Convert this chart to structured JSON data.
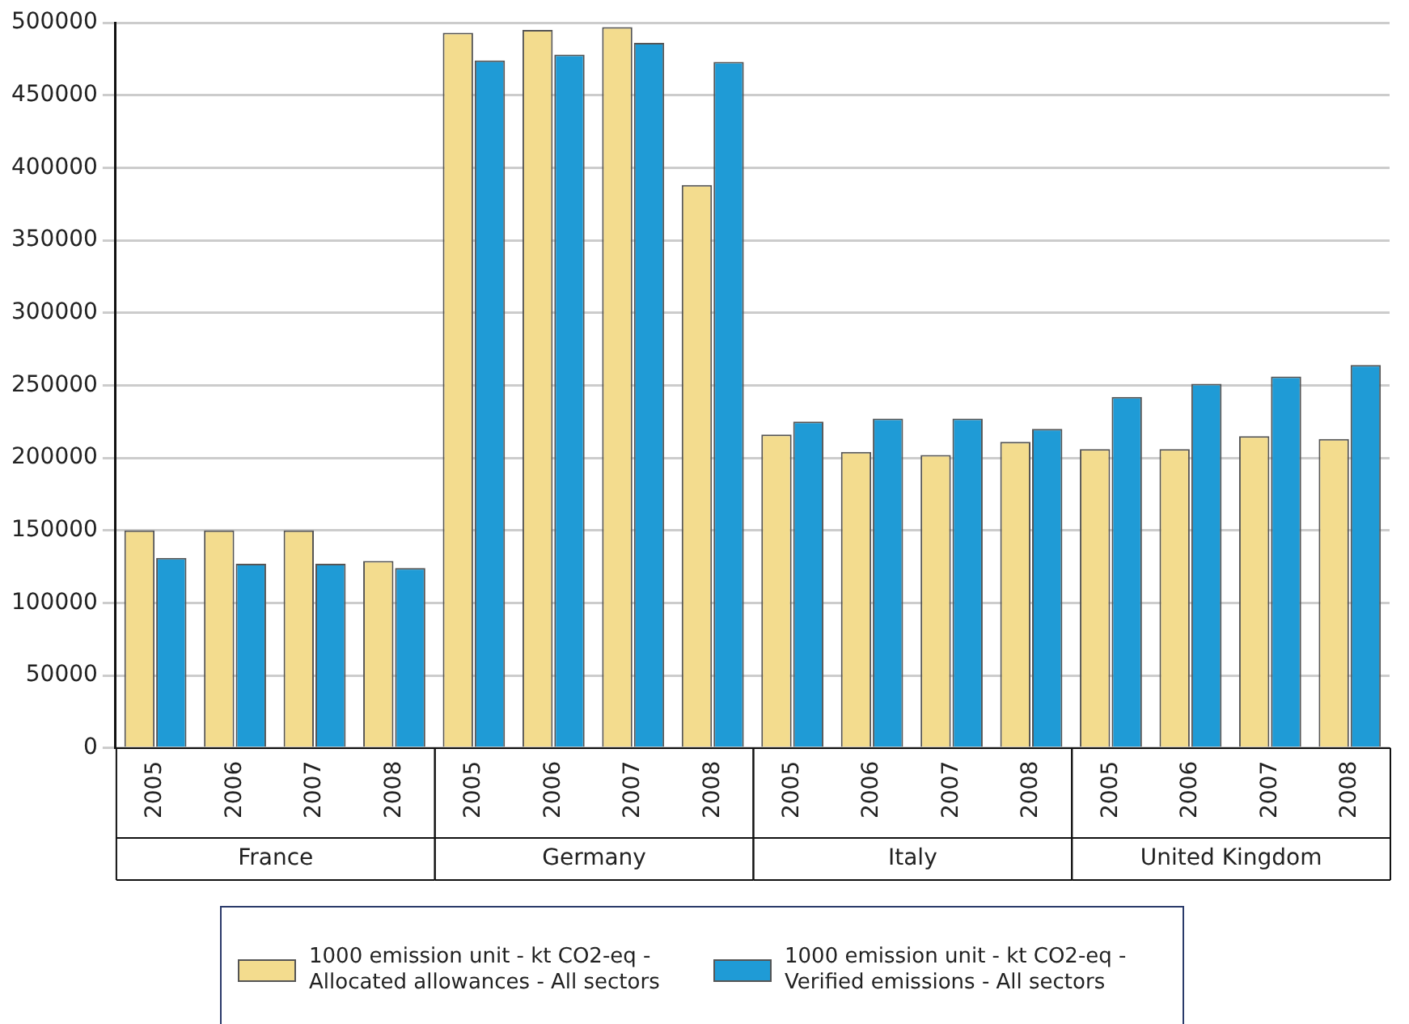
{
  "chart_data": {
    "type": "bar",
    "categories": [
      "2005",
      "2006",
      "2007",
      "2008",
      "2005",
      "2006",
      "2007",
      "2008",
      "2005",
      "2006",
      "2007",
      "2008",
      "2005",
      "2006",
      "2007",
      "2008"
    ],
    "annotations": [
      "France",
      "Germany",
      "Italy",
      "United Kingdom"
    ],
    "series": [
      {
        "name": "1000 emission unit - kt CO2-eq - Allocated allowances - All sectors",
        "color": "#f3dc8e",
        "values": [
          150000,
          150000,
          150000,
          129000,
          493000,
          495000,
          497000,
          388000,
          216000,
          204000,
          202000,
          211000,
          206000,
          206000,
          215000,
          213000
        ]
      },
      {
        "name": "1000 emission unit - kt CO2-eq - Verified emissions - All sectors",
        "color": "#1f9bd6",
        "values": [
          131000,
          127000,
          127000,
          124000,
          474000,
          478000,
          486000,
          473000,
          225000,
          227000,
          227000,
          220000,
          242000,
          251000,
          256000,
          264000
        ]
      }
    ],
    "ylim": [
      0,
      500000
    ],
    "yticks": [
      0,
      50000,
      100000,
      150000,
      200000,
      250000,
      300000,
      350000,
      400000,
      450000,
      500000
    ],
    "grid": "y",
    "legend": "bottom"
  }
}
